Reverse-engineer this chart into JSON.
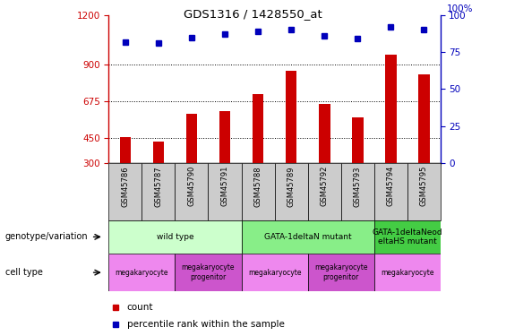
{
  "title": "GDS1316 / 1428550_at",
  "samples": [
    "GSM45786",
    "GSM45787",
    "GSM45790",
    "GSM45791",
    "GSM45788",
    "GSM45789",
    "GSM45792",
    "GSM45793",
    "GSM45794",
    "GSM45795"
  ],
  "counts": [
    455,
    430,
    600,
    615,
    720,
    860,
    660,
    580,
    960,
    840
  ],
  "percentiles": [
    82,
    81,
    85,
    87,
    89,
    90,
    86,
    84,
    92,
    90
  ],
  "ylim_left": [
    300,
    1200
  ],
  "ylim_right": [
    0,
    100
  ],
  "yticks_left": [
    300,
    450,
    675,
    900,
    1200
  ],
  "yticks_right": [
    0,
    25,
    50,
    75,
    100
  ],
  "bar_color": "#cc0000",
  "dot_color": "#0000bb",
  "genotype_groups": [
    {
      "label": "wild type",
      "start": 0,
      "end": 4,
      "color": "#ccffcc"
    },
    {
      "label": "GATA-1deltaN mutant",
      "start": 4,
      "end": 8,
      "color": "#88ee88"
    },
    {
      "label": "GATA-1deltaNeod\neltaHS mutant",
      "start": 8,
      "end": 10,
      "color": "#44cc44"
    }
  ],
  "cell_groups": [
    {
      "label": "megakaryocyte",
      "start": 0,
      "end": 2,
      "color": "#ee88ee"
    },
    {
      "label": "megakaryocyte\nprogenitor",
      "start": 2,
      "end": 4,
      "color": "#cc55cc"
    },
    {
      "label": "megakaryocyte",
      "start": 4,
      "end": 6,
      "color": "#ee88ee"
    },
    {
      "label": "megakaryocyte\nprogenitor",
      "start": 6,
      "end": 8,
      "color": "#cc55cc"
    },
    {
      "label": "megakaryocyte",
      "start": 8,
      "end": 10,
      "color": "#ee88ee"
    }
  ],
  "left_axis_color": "#cc0000",
  "right_axis_color": "#0000bb",
  "grid_color": "#000000",
  "sample_bg_color": "#cccccc",
  "label_geno": "genotype/variation",
  "label_cell": "cell type",
  "legend_count": "count",
  "legend_pct": "percentile rank within the sample",
  "right_axis_top_label": "100%"
}
